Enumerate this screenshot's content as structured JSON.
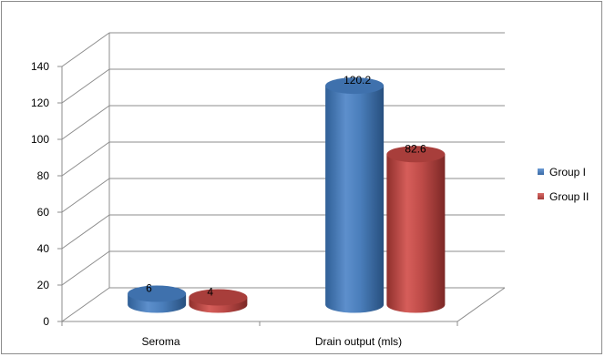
{
  "chart_data": {
    "type": "bar",
    "style": "3d-cylinder",
    "categories": [
      "Seroma",
      "Drain output (mls)"
    ],
    "series": [
      {
        "name": "Group I",
        "values": [
          6,
          120.2
        ],
        "color": "#4a7ebb"
      },
      {
        "name": "Group II",
        "values": [
          4,
          82.6
        ],
        "color": "#be4b48"
      }
    ],
    "y_ticks": [
      0,
      20,
      40,
      60,
      80,
      100,
      120,
      140
    ],
    "ylim": [
      0,
      140
    ],
    "grid": true,
    "legend_position": "right"
  }
}
